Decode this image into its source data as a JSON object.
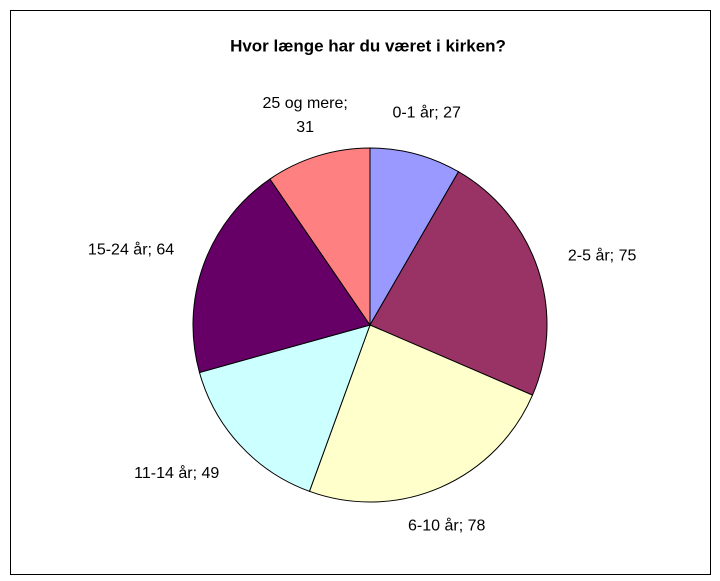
{
  "chart_data": {
    "type": "pie",
    "title": "Hvor længe har du været i kirken?",
    "values": [
      27,
      75,
      78,
      49,
      64,
      31
    ],
    "value_labels": [
      "0-1 år; 27",
      "2-5 år; 75",
      "6-10 år; 78",
      "11-14 år; 49",
      "15-24 år; 64",
      "25 og mere; 31"
    ],
    "colors": [
      "#9999ff",
      "#993366",
      "#ffffcc",
      "#ccffff",
      "#660066",
      "#ff8080"
    ]
  }
}
